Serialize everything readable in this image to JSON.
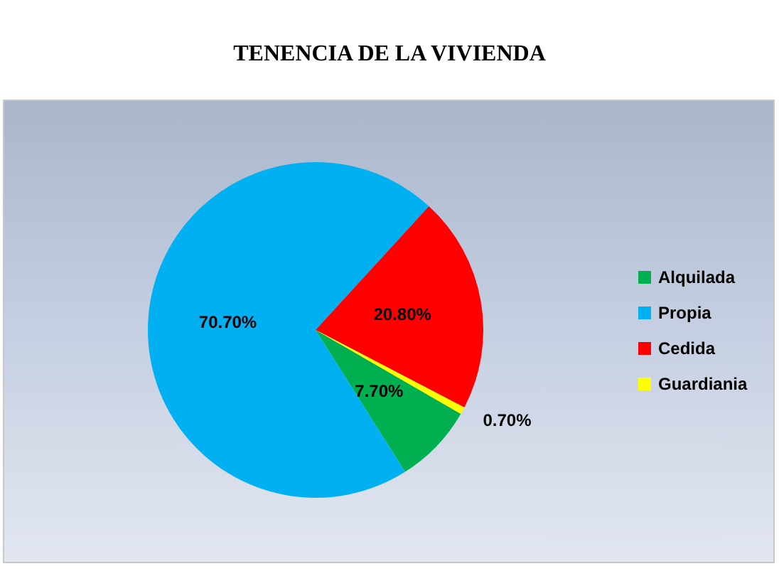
{
  "chart_data": {
    "type": "pie",
    "title": "TENENCIA DE LA VIVIENDA",
    "categories": [
      "Alquilada",
      "Propia",
      "Cedida",
      "Guardiania"
    ],
    "values": [
      7.7,
      70.7,
      20.8,
      0.7
    ],
    "colors": [
      "#00b050",
      "#00b0f0",
      "#ff0000",
      "#ffff00"
    ],
    "value_labels": [
      "7.70%",
      "70.70%",
      "20.80%",
      "0.70%"
    ],
    "legend": "right"
  }
}
